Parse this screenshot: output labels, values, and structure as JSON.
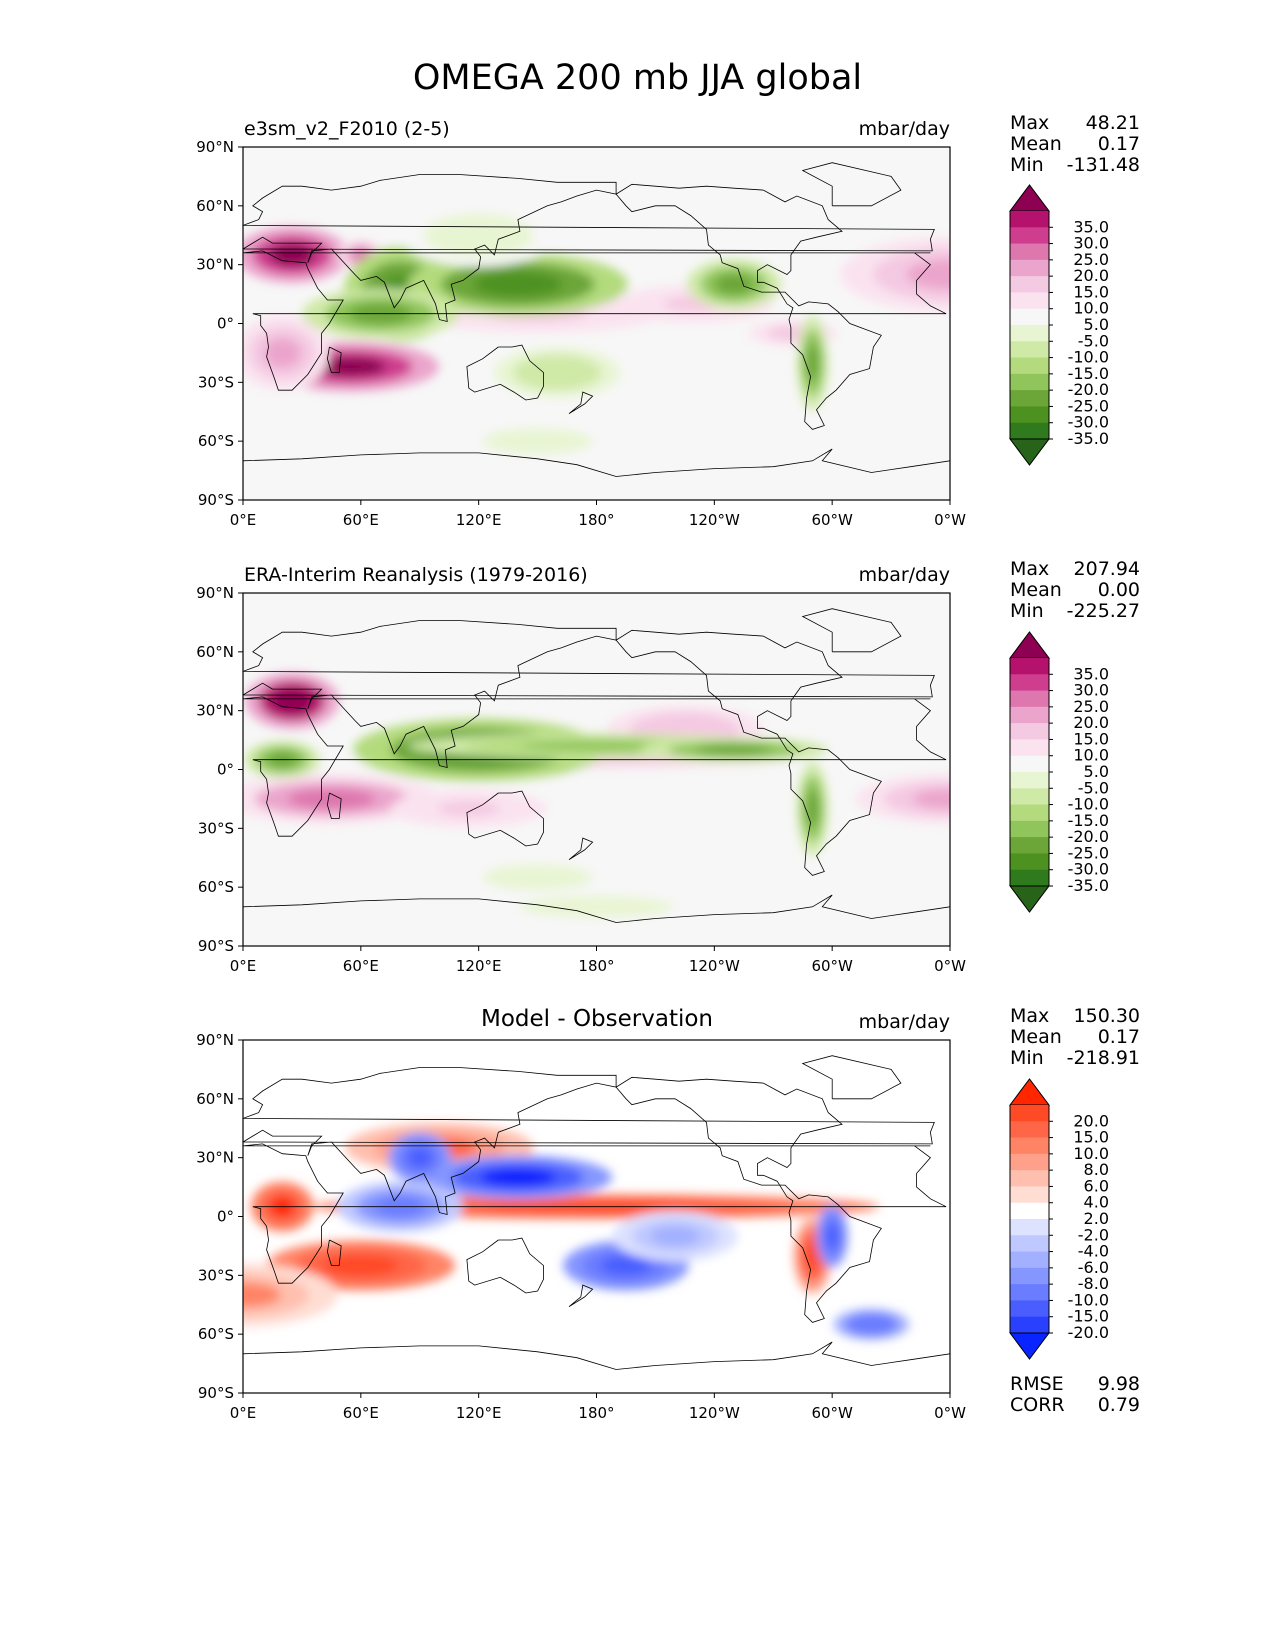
{
  "title": "OMEGA 200 mb JJA global",
  "lon_ticks": [
    "0°E",
    "60°E",
    "120°E",
    "180°",
    "120°W",
    "60°W",
    "0°W"
  ],
  "lat_ticks": [
    "90°N",
    "60°N",
    "30°N",
    "0°",
    "30°S",
    "60°S",
    "90°S"
  ],
  "stat_labels": {
    "max": "Max",
    "mean": "Mean",
    "min": "Min",
    "rmse": "RMSE",
    "corr": "CORR"
  },
  "panels": [
    {
      "title_left": "e3sm_v2_F2010 (2-5)",
      "title_center": "",
      "units": "mbar/day",
      "stats": {
        "max": "48.21",
        "mean": "0.17",
        "min": "-131.48"
      }
    },
    {
      "title_left": "ERA-Interim Reanalysis (1979-2016)",
      "title_center": "",
      "units": "mbar/day",
      "stats": {
        "max": "207.94",
        "mean": "0.00",
        "min": "-225.27"
      }
    },
    {
      "title_left": "",
      "title_center": "Model - Observation",
      "units": "mbar/day",
      "stats": {
        "max": "150.30",
        "mean": "0.17",
        "min": "-218.91"
      },
      "metrics": {
        "rmse": "9.98",
        "corr": "0.79"
      }
    }
  ],
  "colorbars": {
    "main": {
      "labels": [
        "35.0",
        "30.0",
        "25.0",
        "20.0",
        "15.0",
        "10.0",
        "5.0",
        "-5.0",
        "-10.0",
        "-15.0",
        "-20.0",
        "-25.0",
        "-30.0",
        "-35.0"
      ],
      "colors": [
        "#8e0152",
        "#b5126e",
        "#cf3d8f",
        "#de77ae",
        "#eba5cc",
        "#f4c9e2",
        "#fae3ef",
        "#f7f7f7",
        "#e8f5d3",
        "#cfe9a7",
        "#b3db7d",
        "#8fc55a",
        "#6ca638",
        "#4d9221",
        "#2f7a1c",
        "#276419"
      ]
    },
    "diff": {
      "labels": [
        "20.0",
        "15.0",
        "10.0",
        "8.0",
        "6.0",
        "4.0",
        "2.0",
        "-2.0",
        "-4.0",
        "-6.0",
        "-8.0",
        "-10.0",
        "-15.0",
        "-20.0"
      ],
      "colors": [
        "#ff2600",
        "#ff4a26",
        "#ff6547",
        "#ff8466",
        "#ffa18a",
        "#ffbfae",
        "#ffddd3",
        "#ffffff",
        "#dde2ff",
        "#c0c9ff",
        "#a2b0ff",
        "#8596ff",
        "#6a7cff",
        "#4a5eff",
        "#2940ff",
        "#0a24ff"
      ]
    }
  },
  "chart_data": [
    {
      "type": "heatmap",
      "title": "e3sm_v2_F2010 (2-5)",
      "units": "mbar/day",
      "xlim": [
        0,
        360
      ],
      "ylim": [
        -90,
        90
      ],
      "blobs": [
        [
          25,
          35,
          18,
          9,
          38
        ],
        [
          60,
          35,
          7,
          5,
          22
        ],
        [
          55,
          -22,
          28,
          8,
          40
        ],
        [
          20,
          -15,
          15,
          12,
          18
        ],
        [
          360,
          25,
          35,
          12,
          15
        ],
        [
          150,
          5,
          40,
          6,
          12
        ],
        [
          230,
          10,
          25,
          6,
          12
        ],
        [
          280,
          -5,
          20,
          6,
          10
        ],
        [
          80,
          15,
          18,
          15,
          -35
        ],
        [
          140,
          20,
          35,
          10,
          -35
        ],
        [
          70,
          5,
          25,
          8,
          -30
        ],
        [
          250,
          20,
          15,
          8,
          -30
        ],
        [
          290,
          -20,
          5,
          15,
          -30
        ],
        [
          160,
          -25,
          20,
          8,
          -15
        ],
        [
          120,
          45,
          25,
          10,
          -10
        ],
        [
          150,
          -60,
          25,
          6,
          -8
        ]
      ]
    },
    {
      "type": "heatmap",
      "title": "ERA-Interim Reanalysis (1979-2016)",
      "units": "mbar/day",
      "xlim": [
        0,
        360
      ],
      "ylim": [
        -90,
        90
      ],
      "blobs": [
        [
          25,
          35,
          15,
          9,
          42
        ],
        [
          45,
          -15,
          35,
          8,
          22
        ],
        [
          115,
          -20,
          25,
          6,
          12
        ],
        [
          360,
          -15,
          30,
          8,
          15
        ],
        [
          180,
          5,
          90,
          4,
          10
        ],
        [
          225,
          20,
          25,
          8,
          14
        ],
        [
          20,
          5,
          12,
          6,
          -28
        ],
        [
          120,
          10,
          40,
          10,
          -35
        ],
        [
          180,
          12,
          60,
          4,
          -25
        ],
        [
          250,
          10,
          30,
          4,
          -30
        ],
        [
          290,
          -20,
          5,
          15,
          -30
        ],
        [
          150,
          -55,
          25,
          6,
          -8
        ],
        [
          180,
          -70,
          35,
          5,
          -10
        ]
      ]
    },
    {
      "type": "heatmap",
      "title": "Model - Observation",
      "units": "mbar/day",
      "xlim": [
        0,
        360
      ],
      "ylim": [
        -90,
        90
      ],
      "blobs": [
        [
          20,
          5,
          10,
          8,
          20
        ],
        [
          180,
          5,
          90,
          4,
          18
        ],
        [
          60,
          -25,
          30,
          8,
          18
        ],
        [
          290,
          -20,
          6,
          12,
          15
        ],
        [
          100,
          35,
          30,
          8,
          10
        ],
        [
          0,
          -40,
          30,
          10,
          8
        ],
        [
          140,
          20,
          30,
          7,
          -22
        ],
        [
          195,
          -25,
          20,
          8,
          -18
        ],
        [
          80,
          5,
          20,
          8,
          -12
        ],
        [
          220,
          -10,
          20,
          8,
          -8
        ],
        [
          90,
          30,
          10,
          8,
          -18
        ],
        [
          300,
          -10,
          5,
          10,
          -18
        ],
        [
          320,
          -55,
          12,
          5,
          -15
        ]
      ]
    }
  ]
}
